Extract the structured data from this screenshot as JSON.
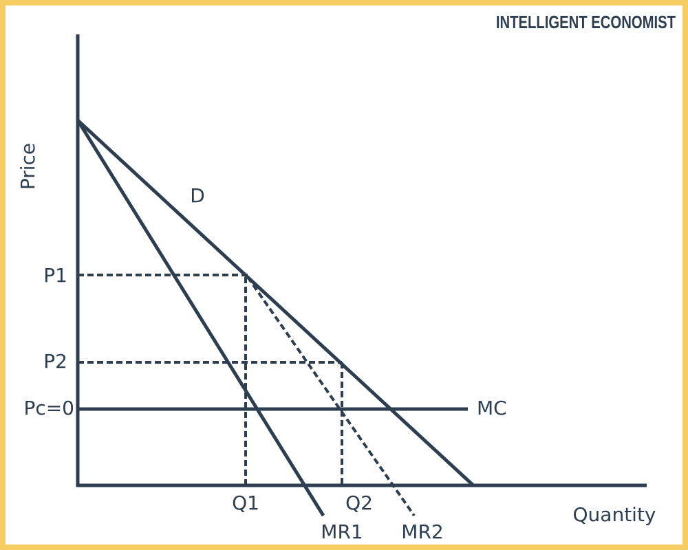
{
  "brand": "INTELLIGENT ECONOMIST",
  "axes": {
    "y_label": "Price",
    "x_label": "Quantity"
  },
  "curves": {
    "demand": "D",
    "mc": "MC",
    "mr1": "MR1",
    "mr2": "MR2"
  },
  "price_levels": [
    "P1",
    "P2",
    "Pc=0"
  ],
  "quantity_levels": [
    "Q1",
    "Q2"
  ]
}
